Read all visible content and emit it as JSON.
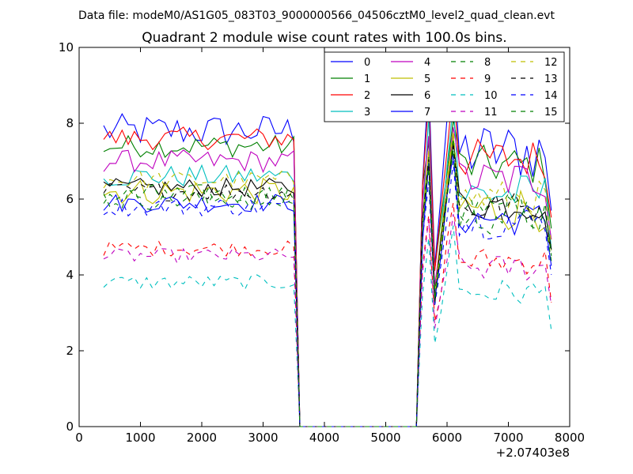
{
  "chart_data": {
    "type": "line",
    "suptitle": "Data file: modeM0/AS1G05_083T03_9000000566_04506cztM0_level2_quad_clean.evt",
    "title": "Quadrant 2 module wise count rates with 100.0s bins.",
    "xlabel": "",
    "ylabel": "",
    "x_offset_label": "+2.07403e8",
    "xlim": [
      0,
      8000
    ],
    "ylim": [
      0,
      10
    ],
    "xticks": [
      0,
      1000,
      2000,
      3000,
      4000,
      5000,
      6000,
      7000,
      8000
    ],
    "yticks": [
      0,
      2,
      4,
      6,
      8,
      10
    ],
    "grid": false,
    "legend": {
      "placement": "top-right",
      "columns": 4
    },
    "series": [
      {
        "name": "0",
        "color": "#0000ff",
        "dash": "solid",
        "base": 7.8,
        "amp": 0.45,
        "post_peak": 9.7
      },
      {
        "name": "1",
        "color": "#008000",
        "dash": "solid",
        "base": 7.4,
        "amp": 0.3,
        "post_peak": 8.1
      },
      {
        "name": "2",
        "color": "#ff0000",
        "dash": "solid",
        "base": 7.6,
        "amp": 0.3,
        "post_peak": 9.0
      },
      {
        "name": "3",
        "color": "#00bfbf",
        "dash": "solid",
        "base": 6.6,
        "amp": 0.3,
        "post_peak": 8.5
      },
      {
        "name": "4",
        "color": "#bf00bf",
        "dash": "solid",
        "base": 7.0,
        "amp": 0.3,
        "post_peak": 7.9
      },
      {
        "name": "5",
        "color": "#bfbf00",
        "dash": "solid",
        "base": 6.2,
        "amp": 0.35,
        "post_peak": 7.7
      },
      {
        "name": "6",
        "color": "#000000",
        "dash": "solid",
        "base": 6.3,
        "amp": 0.25,
        "post_peak": 7.5
      },
      {
        "name": "7",
        "color": "#0000ff",
        "dash": "solid",
        "base": 5.9,
        "amp": 0.25,
        "post_peak": 7.2
      },
      {
        "name": "8",
        "color": "#008000",
        "dash": "dashed",
        "base": 6.1,
        "amp": 0.3,
        "post_peak": 7.6
      },
      {
        "name": "9",
        "color": "#ff0000",
        "dash": "dashed",
        "base": 4.7,
        "amp": 0.2,
        "post_peak": 5.9
      },
      {
        "name": "10",
        "color": "#00bfbf",
        "dash": "dashed",
        "base": 3.8,
        "amp": 0.2,
        "post_peak": 5.3
      },
      {
        "name": "11",
        "color": "#bf00bf",
        "dash": "dashed",
        "base": 4.5,
        "amp": 0.2,
        "post_peak": 5.6
      },
      {
        "name": "12",
        "color": "#bfbf00",
        "dash": "dashed",
        "base": 6.5,
        "amp": 0.25,
        "post_peak": 7.8
      },
      {
        "name": "13",
        "color": "#000000",
        "dash": "dashed",
        "base": 6.2,
        "amp": 0.25,
        "post_peak": 7.4
      },
      {
        "name": "14",
        "color": "#0000ff",
        "dash": "dashed",
        "base": 5.8,
        "amp": 0.25,
        "post_peak": 7.0
      },
      {
        "name": "15",
        "color": "#008000",
        "dash": "dashed",
        "base": 6.0,
        "amp": 0.3,
        "post_peak": 7.3
      }
    ],
    "time_axis": {
      "start": 400,
      "end": 7700,
      "step": 100,
      "gap_start": 3600,
      "gap_end": 5500,
      "spike_x": 5700,
      "dip_x": 5800,
      "peak_x": 6100
    }
  }
}
